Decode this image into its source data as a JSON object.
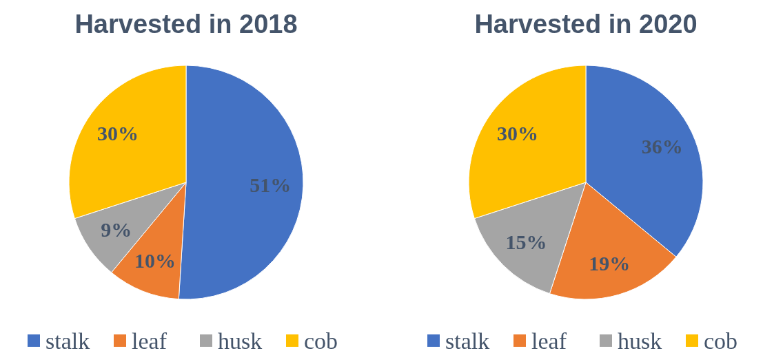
{
  "chart_data": [
    {
      "type": "pie",
      "title": "Harvested in 2018",
      "categories": [
        "stalk",
        "leaf",
        "husk",
        "cob"
      ],
      "values": [
        51,
        10,
        9,
        30
      ],
      "value_labels": [
        "51%",
        "10%",
        "9%",
        "30%"
      ],
      "colors": [
        "#4472c4",
        "#ed7d31",
        "#a5a5a5",
        "#ffc000"
      ],
      "legend": "bottom"
    },
    {
      "type": "pie",
      "title": "Harvested in 2020",
      "categories": [
        "stalk",
        "leaf",
        "husk",
        "cob"
      ],
      "values": [
        36,
        19,
        15,
        30
      ],
      "value_labels": [
        "36%",
        "19%",
        "15%",
        "30%"
      ],
      "colors": [
        "#4472c4",
        "#ed7d31",
        "#a5a5a5",
        "#ffc000"
      ],
      "legend": "bottom"
    }
  ]
}
